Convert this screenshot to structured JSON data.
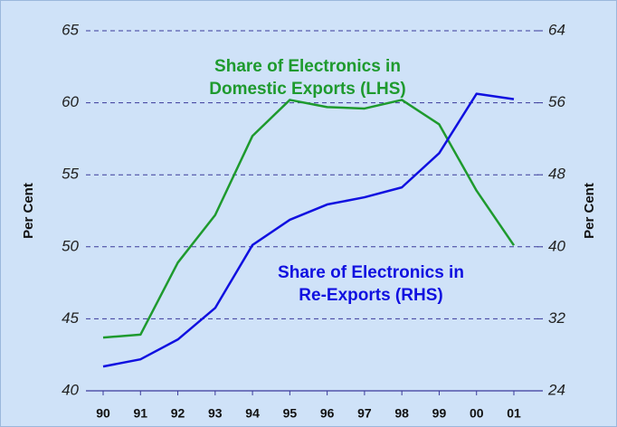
{
  "chart_data": {
    "type": "line",
    "categories": [
      "90",
      "91",
      "92",
      "93",
      "94",
      "95",
      "96",
      "97",
      "98",
      "99",
      "00",
      "01"
    ],
    "series": [
      {
        "name": "Share of Electronics in Domestic Exports (LHS)",
        "color": "#1e9a2e",
        "axis": "y",
        "values": [
          43.7,
          43.9,
          48.9,
          52.2,
          57.7,
          60.2,
          59.7,
          59.6,
          60.2,
          58.5,
          53.9,
          50.1
        ]
      },
      {
        "name": "Share of Electronics in Re-Exports (RHS)",
        "color": "#1010e0",
        "axis": "y2",
        "values": [
          26.7,
          27.5,
          29.7,
          33.2,
          40.2,
          43.0,
          44.7,
          45.5,
          46.6,
          50.4,
          57.0,
          56.4
        ]
      }
    ],
    "annotations": [
      {
        "lines": [
          "Share of Electronics in",
          "Domestic Exports (LHS)"
        ],
        "color": "#1e9a2e"
      },
      {
        "lines": [
          "Share of Electronics in",
          "Re-Exports (RHS)"
        ],
        "color": "#1010e0"
      }
    ],
    "ylabel": "Per Cent",
    "y2label": "Per Cent",
    "ylim": [
      40,
      65
    ],
    "yticks": [
      40,
      45,
      50,
      55,
      60,
      65
    ],
    "y2lim": [
      24,
      64
    ],
    "y2ticks": [
      24,
      32,
      40,
      48,
      56,
      64
    ],
    "grid": true
  }
}
